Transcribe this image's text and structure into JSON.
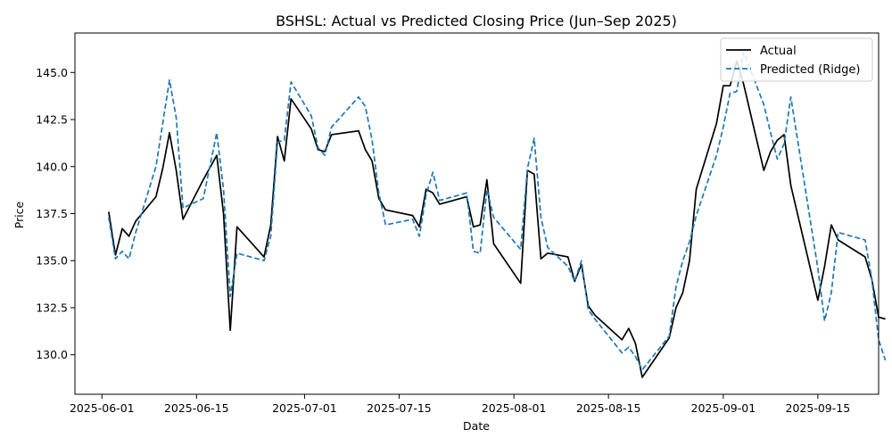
{
  "chart_data": {
    "type": "line",
    "title": "BSHSL: Actual vs Predicted Closing Price (Jun–Sep 2025)",
    "xlabel": "Date",
    "ylabel": "Price",
    "x_ticks": [
      "2025-06-01",
      "2025-06-15",
      "2025-07-01",
      "2025-07-15",
      "2025-08-01",
      "2025-08-15",
      "2025-09-01",
      "2025-09-15"
    ],
    "y_ticks": [
      "130.0",
      "132.5",
      "135.0",
      "137.5",
      "140.0",
      "142.5",
      "145.0"
    ],
    "xlim": [
      "2025-05-28",
      "2025-09-24"
    ],
    "ylim": [
      127.9,
      147.1
    ],
    "grid": false,
    "legend_position": "top-right",
    "colors": {
      "actual": "#000000",
      "predicted": "#1f77b4"
    },
    "series": [
      {
        "name": "Actual",
        "style": "solid",
        "points": [
          [
            "2025-06-02",
            137.6
          ],
          [
            "2025-06-03",
            135.3
          ],
          [
            "2025-06-04",
            136.7
          ],
          [
            "2025-06-05",
            136.3
          ],
          [
            "2025-06-06",
            137.1
          ],
          [
            "2025-06-09",
            138.4
          ],
          [
            "2025-06-10",
            139.9
          ],
          [
            "2025-06-11",
            141.8
          ],
          [
            "2025-06-12",
            139.8
          ],
          [
            "2025-06-13",
            137.2
          ],
          [
            "2025-06-16",
            139.3
          ],
          [
            "2025-06-18",
            140.6
          ],
          [
            "2025-06-19",
            137.5
          ],
          [
            "2025-06-20",
            131.3
          ],
          [
            "2025-06-21",
            136.8
          ],
          [
            "2025-06-25",
            135.2
          ],
          [
            "2025-06-26",
            136.9
          ],
          [
            "2025-06-27",
            141.6
          ],
          [
            "2025-06-28",
            140.3
          ],
          [
            "2025-06-29",
            143.6
          ],
          [
            "2025-07-02",
            142.0
          ],
          [
            "2025-07-03",
            140.9
          ],
          [
            "2025-07-04",
            140.8
          ],
          [
            "2025-07-05",
            141.7
          ],
          [
            "2025-07-09",
            141.9
          ],
          [
            "2025-07-10",
            140.9
          ],
          [
            "2025-07-11",
            140.3
          ],
          [
            "2025-07-12",
            138.3
          ],
          [
            "2025-07-13",
            137.7
          ],
          [
            "2025-07-17",
            137.4
          ],
          [
            "2025-07-18",
            136.8
          ],
          [
            "2025-07-19",
            138.8
          ],
          [
            "2025-07-20",
            138.6
          ],
          [
            "2025-07-21",
            138.0
          ],
          [
            "2025-07-25",
            138.4
          ],
          [
            "2025-07-26",
            136.8
          ],
          [
            "2025-07-27",
            136.9
          ],
          [
            "2025-07-28",
            139.3
          ],
          [
            "2025-07-29",
            135.9
          ],
          [
            "2025-08-02",
            133.8
          ],
          [
            "2025-08-03",
            139.8
          ],
          [
            "2025-08-04",
            139.6
          ],
          [
            "2025-08-05",
            135.1
          ],
          [
            "2025-08-06",
            135.4
          ],
          [
            "2025-08-09",
            135.2
          ],
          [
            "2025-08-10",
            133.9
          ],
          [
            "2025-08-11",
            134.8
          ],
          [
            "2025-08-12",
            132.6
          ],
          [
            "2025-08-13",
            132.1
          ],
          [
            "2025-08-17",
            130.8
          ],
          [
            "2025-08-18",
            131.4
          ],
          [
            "2025-08-19",
            130.6
          ],
          [
            "2025-08-20",
            128.8
          ],
          [
            "2025-08-24",
            130.9
          ],
          [
            "2025-08-25",
            132.5
          ],
          [
            "2025-08-26",
            133.3
          ],
          [
            "2025-08-27",
            135.0
          ],
          [
            "2025-08-28",
            138.8
          ],
          [
            "2025-08-31",
            142.3
          ],
          [
            "2025-09-01",
            144.3
          ],
          [
            "2025-09-02",
            144.3
          ],
          [
            "2025-09-03",
            145.6
          ],
          [
            "2025-09-04",
            144.4
          ],
          [
            "2025-09-07",
            139.8
          ],
          [
            "2025-09-08",
            140.8
          ],
          [
            "2025-09-09",
            141.4
          ],
          [
            "2025-09-10",
            141.7
          ],
          [
            "2025-09-11",
            139.0
          ],
          [
            "2025-09-15",
            132.9
          ],
          [
            "2025-09-16",
            134.7
          ],
          [
            "2025-09-17",
            136.9
          ],
          [
            "2025-09-18",
            136.1
          ],
          [
            "2025-09-22",
            135.2
          ],
          [
            "2025-09-23",
            134.0
          ],
          [
            "2025-09-24",
            132.0
          ],
          [
            "2025-09-25",
            131.9
          ]
        ]
      },
      {
        "name": "Predicted (Ridge)",
        "style": "dashed",
        "points": [
          [
            "2025-06-02",
            137.3
          ],
          [
            "2025-06-03",
            135.1
          ],
          [
            "2025-06-04",
            135.5
          ],
          [
            "2025-06-05",
            135.1
          ],
          [
            "2025-06-06",
            136.5
          ],
          [
            "2025-06-09",
            140.0
          ],
          [
            "2025-06-10",
            142.3
          ],
          [
            "2025-06-11",
            144.6
          ],
          [
            "2025-06-12",
            142.6
          ],
          [
            "2025-06-13",
            137.8
          ],
          [
            "2025-06-16",
            138.3
          ],
          [
            "2025-06-18",
            141.8
          ],
          [
            "2025-06-19",
            138.8
          ],
          [
            "2025-06-20",
            133.1
          ],
          [
            "2025-06-21",
            135.4
          ],
          [
            "2025-06-25",
            135.0
          ],
          [
            "2025-06-26",
            136.3
          ],
          [
            "2025-06-27",
            141.3
          ],
          [
            "2025-06-28",
            141.4
          ],
          [
            "2025-06-29",
            144.5
          ],
          [
            "2025-07-02",
            142.7
          ],
          [
            "2025-07-03",
            141.0
          ],
          [
            "2025-07-04",
            140.6
          ],
          [
            "2025-07-05",
            142.1
          ],
          [
            "2025-07-09",
            143.7
          ],
          [
            "2025-07-10",
            143.2
          ],
          [
            "2025-07-11",
            141.4
          ],
          [
            "2025-07-12",
            138.6
          ],
          [
            "2025-07-13",
            136.9
          ],
          [
            "2025-07-17",
            137.2
          ],
          [
            "2025-07-18",
            136.3
          ],
          [
            "2025-07-19",
            138.5
          ],
          [
            "2025-07-20",
            139.7
          ],
          [
            "2025-07-21",
            138.2
          ],
          [
            "2025-07-25",
            138.6
          ],
          [
            "2025-07-26",
            135.5
          ],
          [
            "2025-07-27",
            135.4
          ],
          [
            "2025-07-28",
            138.8
          ],
          [
            "2025-07-29",
            137.3
          ],
          [
            "2025-08-02",
            135.6
          ],
          [
            "2025-08-03",
            139.9
          ],
          [
            "2025-08-04",
            141.5
          ],
          [
            "2025-08-05",
            137.3
          ],
          [
            "2025-08-06",
            135.7
          ],
          [
            "2025-08-09",
            134.7
          ],
          [
            "2025-08-10",
            133.9
          ],
          [
            "2025-08-11",
            135.0
          ],
          [
            "2025-08-12",
            132.4
          ],
          [
            "2025-08-13",
            131.9
          ],
          [
            "2025-08-17",
            130.1
          ],
          [
            "2025-08-18",
            130.4
          ],
          [
            "2025-08-19",
            129.9
          ],
          [
            "2025-08-20",
            129.2
          ],
          [
            "2025-08-24",
            131.0
          ],
          [
            "2025-08-25",
            133.6
          ],
          [
            "2025-08-26",
            135.0
          ],
          [
            "2025-08-27",
            136.0
          ],
          [
            "2025-08-28",
            137.4
          ],
          [
            "2025-08-31",
            140.6
          ],
          [
            "2025-09-01",
            142.1
          ],
          [
            "2025-09-02",
            143.9
          ],
          [
            "2025-09-03",
            144.0
          ],
          [
            "2025-09-04",
            146.1
          ],
          [
            "2025-09-07",
            143.3
          ],
          [
            "2025-09-08",
            141.8
          ],
          [
            "2025-09-09",
            140.4
          ],
          [
            "2025-09-10",
            141.2
          ],
          [
            "2025-09-11",
            143.7
          ],
          [
            "2025-09-15",
            134.6
          ],
          [
            "2025-09-16",
            131.8
          ],
          [
            "2025-09-17",
            133.3
          ],
          [
            "2025-09-18",
            136.5
          ],
          [
            "2025-09-22",
            136.1
          ],
          [
            "2025-09-23",
            134.0
          ],
          [
            "2025-09-24",
            130.8
          ],
          [
            "2025-09-25",
            129.7
          ]
        ]
      }
    ]
  }
}
